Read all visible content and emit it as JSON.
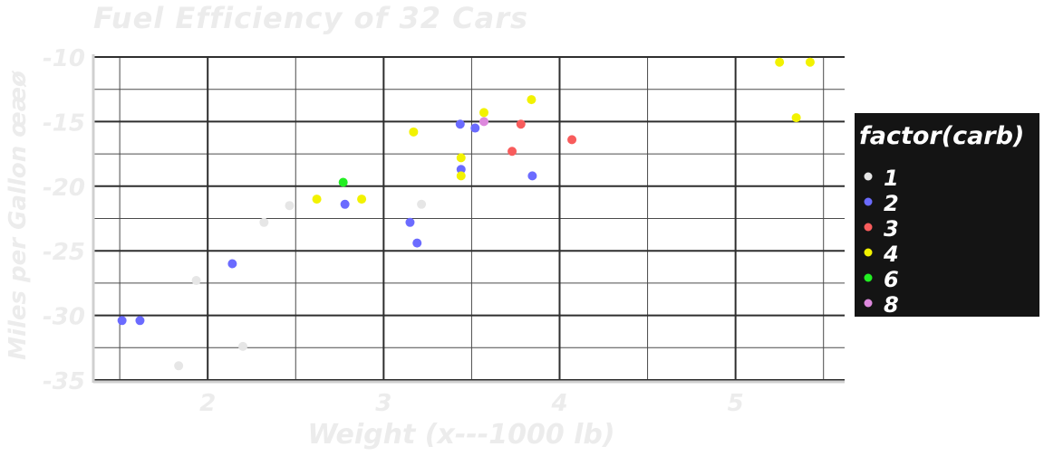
{
  "chart_data": {
    "type": "scatter",
    "title": "Fuel Efficiency of 32 Cars",
    "xlabel": "Weight (x---1000 lb)",
    "ylabel": "Miles per Gallon œæø",
    "xlim": [
      1.35,
      5.62
    ],
    "ylim": [
      -35,
      -10
    ],
    "x_ticks": [
      2,
      3,
      4,
      5
    ],
    "x_tick_labels": [
      "2",
      "3",
      "4",
      "5"
    ],
    "y_ticks": [
      -35,
      -30,
      -25,
      -20,
      -15,
      -10
    ],
    "y_tick_labels": [
      "-35",
      "-30",
      "-25",
      "-20",
      "-15",
      "-10"
    ],
    "grid": true,
    "legend_position": "right",
    "legend": {
      "title": "factor(carb)",
      "entries": [
        {
          "label": "1",
          "color": "#e6e6e6"
        },
        {
          "label": "2",
          "color": "#6b6bff"
        },
        {
          "label": "3",
          "color": "#f85c5c"
        },
        {
          "label": "4",
          "color": "#f2f200"
        },
        {
          "label": "6",
          "color": "#22ee22"
        },
        {
          "label": "8",
          "color": "#dd88dd"
        }
      ]
    },
    "series": [
      {
        "name": "1",
        "color": "#e6e6e6",
        "points": [
          {
            "x": 1.835,
            "y": -33.9
          },
          {
            "x": 1.935,
            "y": -27.3
          },
          {
            "x": 2.2,
            "y": -32.4
          },
          {
            "x": 2.32,
            "y": -22.8
          },
          {
            "x": 2.465,
            "y": -21.5
          },
          {
            "x": 3.215,
            "y": -21.4
          }
        ]
      },
      {
        "name": "2",
        "color": "#6b6bff",
        "points": [
          {
            "x": 1.513,
            "y": -30.4
          },
          {
            "x": 1.615,
            "y": -30.4
          },
          {
            "x": 2.14,
            "y": -26.0
          },
          {
            "x": 2.78,
            "y": -21.4
          },
          {
            "x": 3.15,
            "y": -22.8
          },
          {
            "x": 3.19,
            "y": -24.4
          },
          {
            "x": 3.435,
            "y": -15.2
          },
          {
            "x": 3.44,
            "y": -18.7
          },
          {
            "x": 3.52,
            "y": -15.5
          },
          {
            "x": 3.845,
            "y": -19.2
          }
        ]
      },
      {
        "name": "3",
        "color": "#f85c5c",
        "points": [
          {
            "x": 3.73,
            "y": -17.3
          },
          {
            "x": 3.78,
            "y": -15.2
          },
          {
            "x": 4.07,
            "y": -16.4
          }
        ]
      },
      {
        "name": "4",
        "color": "#f2f200",
        "points": [
          {
            "x": 2.62,
            "y": -21.0
          },
          {
            "x": 2.875,
            "y": -21.0
          },
          {
            "x": 3.17,
            "y": -15.8
          },
          {
            "x": 3.44,
            "y": -19.2
          },
          {
            "x": 3.44,
            "y": -17.8
          },
          {
            "x": 3.57,
            "y": -14.3
          },
          {
            "x": 3.84,
            "y": -13.3
          },
          {
            "x": 5.25,
            "y": -10.4
          },
          {
            "x": 5.345,
            "y": -14.7
          },
          {
            "x": 5.424,
            "y": -10.4
          }
        ]
      },
      {
        "name": "6",
        "color": "#22ee22",
        "points": [
          {
            "x": 2.77,
            "y": -19.7
          }
        ]
      },
      {
        "name": "8",
        "color": "#dd88dd",
        "points": [
          {
            "x": 3.57,
            "y": -15.0
          }
        ]
      }
    ]
  }
}
